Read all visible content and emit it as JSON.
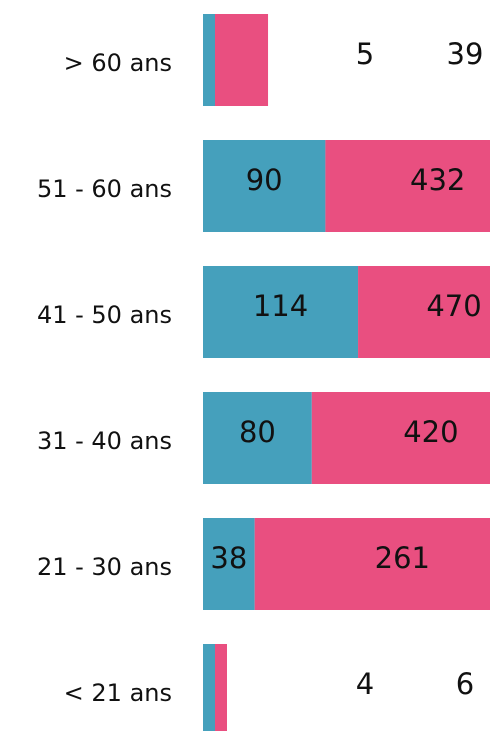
{
  "chart_data": {
    "type": "bar",
    "orientation": "horizontal",
    "stacked": true,
    "categories": [
      "> 60 ans",
      "51 - 60 ans",
      "41 - 50 ans",
      "31 - 40 ans",
      "21 - 30 ans",
      "< 21 ans"
    ],
    "series": [
      {
        "color": "#45a0bc",
        "values": [
          5,
          90,
          114,
          80,
          38,
          4
        ]
      },
      {
        "color": "#e94f80",
        "values": [
          39,
          432,
          470,
          420,
          261,
          6
        ]
      }
    ]
  }
}
